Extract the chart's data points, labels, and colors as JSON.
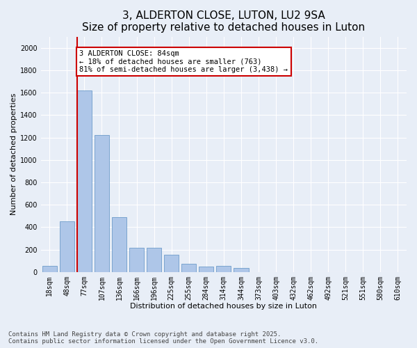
{
  "title": "3, ALDERTON CLOSE, LUTON, LU2 9SA",
  "subtitle": "Size of property relative to detached houses in Luton",
  "xlabel": "Distribution of detached houses by size in Luton",
  "ylabel": "Number of detached properties",
  "categories": [
    "18sqm",
    "48sqm",
    "77sqm",
    "107sqm",
    "136sqm",
    "166sqm",
    "196sqm",
    "225sqm",
    "255sqm",
    "284sqm",
    "314sqm",
    "344sqm",
    "373sqm",
    "403sqm",
    "432sqm",
    "462sqm",
    "492sqm",
    "521sqm",
    "551sqm",
    "580sqm",
    "610sqm"
  ],
  "values": [
    55,
    450,
    1620,
    1220,
    490,
    215,
    215,
    155,
    70,
    50,
    55,
    35,
    0,
    0,
    0,
    0,
    0,
    0,
    0,
    0,
    0
  ],
  "bar_color": "#aec6e8",
  "bar_edge_color": "#5a8fc2",
  "vline_index": 2,
  "vline_color": "#cc0000",
  "annotation_text": "3 ALDERTON CLOSE: 84sqm\n← 18% of detached houses are smaller (763)\n81% of semi-detached houses are larger (3,438) →",
  "annotation_box_color": "#ffffff",
  "annotation_box_edge": "#cc0000",
  "ylim": [
    0,
    2100
  ],
  "yticks": [
    0,
    200,
    400,
    600,
    800,
    1000,
    1200,
    1400,
    1600,
    1800,
    2000
  ],
  "bg_color": "#e8eef7",
  "footer_text": "Contains HM Land Registry data © Crown copyright and database right 2025.\nContains public sector information licensed under the Open Government Licence v3.0.",
  "title_fontsize": 11,
  "axis_label_fontsize": 8,
  "tick_fontsize": 7,
  "annotation_fontsize": 7.5,
  "footer_fontsize": 6.5
}
